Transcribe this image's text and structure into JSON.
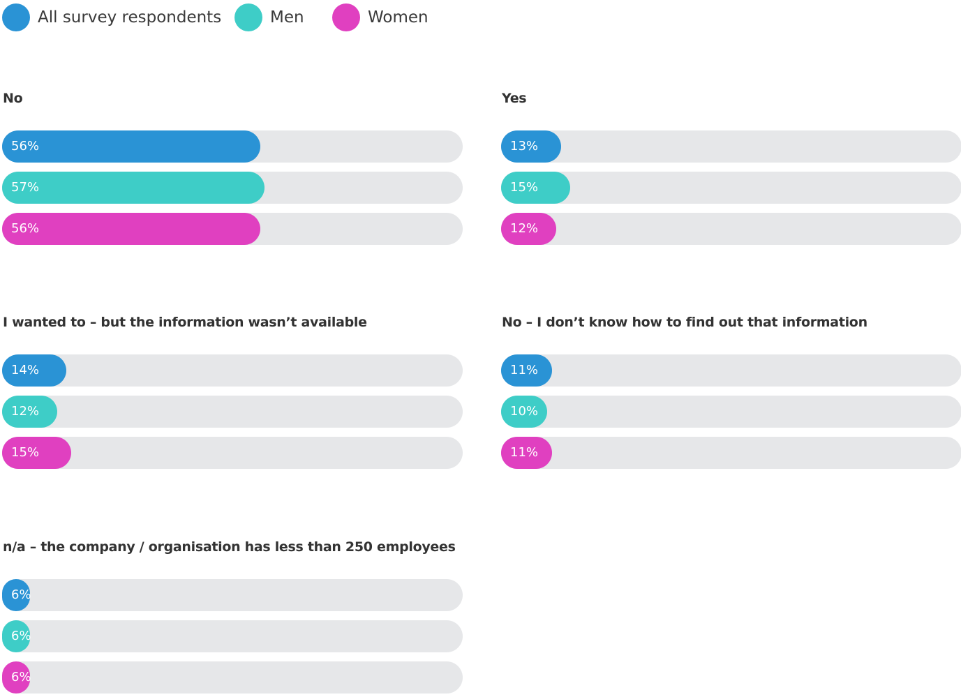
{
  "chart_data": {
    "type": "bar",
    "orientation": "horizontal",
    "unit": "%",
    "xlim": [
      0,
      100
    ],
    "legend": {
      "placement": "top-left",
      "entries": [
        {
          "name": "All survey respondents",
          "color": "#2a93d5"
        },
        {
          "name": "Men",
          "color": "#3ecdc7"
        },
        {
          "name": "Women",
          "color": "#e040c0"
        }
      ]
    },
    "track_color": "#e6e7e9",
    "panels": [
      {
        "title": "No",
        "values": [
          56,
          57,
          56
        ],
        "labels": [
          "56%",
          "57%",
          "56%"
        ]
      },
      {
        "title": "Yes",
        "values": [
          13,
          15,
          12
        ],
        "labels": [
          "13%",
          "15%",
          "12%"
        ]
      },
      {
        "title": "I wanted to – but the information wasn’t available",
        "values": [
          14,
          12,
          15
        ],
        "labels": [
          "14%",
          "12%",
          "15%"
        ]
      },
      {
        "title": "No – I don’t know how to find out that information",
        "values": [
          11,
          10,
          11
        ],
        "labels": [
          "11%",
          "10%",
          "11%"
        ]
      },
      {
        "title": "n/a – the company / organisation has less than 250 employees",
        "values": [
          6,
          6,
          6
        ],
        "labels": [
          "6%",
          "6%",
          "6%"
        ]
      }
    ]
  }
}
